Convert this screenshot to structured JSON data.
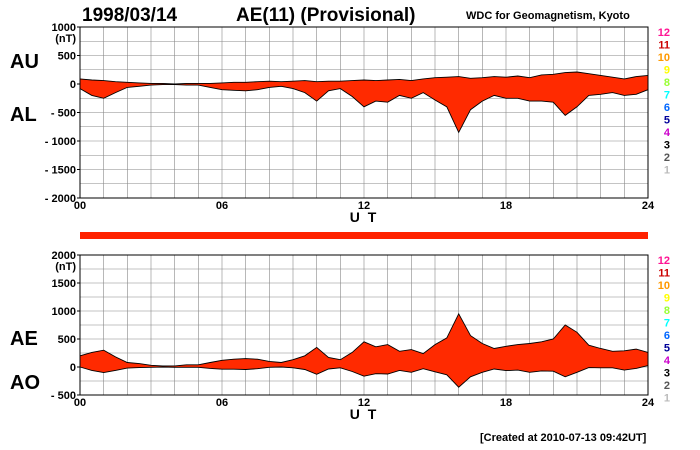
{
  "header": {
    "date": "1998/03/14",
    "title": "AE(11) (Provisional)",
    "source": "WDC for Geomagnetism, Kyoto"
  },
  "footer": {
    "created": "[Created at 2010-07-13 09:42UT]"
  },
  "upper_panel": {
    "label_top": "AU",
    "label_bottom": "AL"
  },
  "lower_panel": {
    "label_top": "AE",
    "label_bottom": "AO"
  },
  "station_count_legend": {
    "labels": [
      "12",
      "11",
      "10",
      "9",
      "8",
      "7",
      "6",
      "5",
      "4",
      "3",
      "2",
      "1"
    ],
    "colors": [
      "#ff1493",
      "#cc0000",
      "#ff9900",
      "#ffff00",
      "#99ff33",
      "#00ffff",
      "#0066ff",
      "#000099",
      "#cc00cc",
      "#000000",
      "#555555",
      "#bbbbbb"
    ]
  },
  "colors": {
    "fill": "#ff2a00",
    "bar": "#ff2200",
    "grid": "#888888",
    "axis": "#000000"
  },
  "chart_data": [
    {
      "type": "area",
      "name": "AU/AL",
      "title": "AE(11) (Provisional)",
      "xlabel": "U T",
      "ylabel": "(nT)",
      "xlim": [
        0,
        24
      ],
      "ylim": [
        -2000,
        1000
      ],
      "xticks": [
        "00",
        "06",
        "12",
        "18",
        "24"
      ],
      "yticks": [
        "1000",
        "500",
        "0",
        "- 500",
        "- 1000",
        "- 1500",
        "- 2000"
      ],
      "x": [
        0,
        0.5,
        1,
        1.5,
        2,
        2.5,
        3,
        3.5,
        4,
        4.5,
        5,
        5.5,
        6,
        6.5,
        7,
        7.5,
        8,
        8.5,
        9,
        9.5,
        10,
        10.5,
        11,
        11.5,
        12,
        12.5,
        13,
        13.5,
        14,
        14.5,
        15,
        15.5,
        16,
        16.5,
        17,
        17.5,
        18,
        18.5,
        19,
        19.5,
        20,
        20.5,
        21,
        21.5,
        22,
        22.5,
        23,
        23.5,
        24
      ],
      "series": [
        {
          "name": "AU",
          "values": [
            90,
            70,
            60,
            40,
            30,
            20,
            10,
            10,
            0,
            10,
            10,
            10,
            20,
            30,
            30,
            40,
            50,
            40,
            50,
            60,
            40,
            50,
            50,
            60,
            70,
            60,
            70,
            80,
            60,
            90,
            110,
            120,
            130,
            100,
            110,
            130,
            120,
            140,
            110,
            160,
            170,
            200,
            210,
            180,
            150,
            120,
            90,
            130,
            150
          ]
        },
        {
          "name": "AL",
          "values": [
            -80,
            -200,
            -250,
            -150,
            -60,
            -40,
            -20,
            -10,
            -10,
            -20,
            -20,
            -60,
            -100,
            -110,
            -120,
            -100,
            -60,
            -40,
            -80,
            -150,
            -300,
            -120,
            -80,
            -220,
            -400,
            -300,
            -320,
            -200,
            -250,
            -150,
            -280,
            -400,
            -850,
            -450,
            -300,
            -200,
            -250,
            -250,
            -300,
            -300,
            -320,
            -550,
            -400,
            -200,
            -180,
            -150,
            -200,
            -180,
            -100
          ]
        }
      ]
    },
    {
      "type": "area",
      "name": "AE/AO",
      "xlabel": "U T",
      "ylabel": "(nT)",
      "xlim": [
        0,
        24
      ],
      "ylim": [
        -500,
        2000
      ],
      "xticks": [
        "00",
        "06",
        "12",
        "18",
        "24"
      ],
      "yticks": [
        "2000",
        "1500",
        "1000",
        "500",
        "0",
        "- 500"
      ],
      "x": [
        0,
        0.5,
        1,
        1.5,
        2,
        2.5,
        3,
        3.5,
        4,
        4.5,
        5,
        5.5,
        6,
        6.5,
        7,
        7.5,
        8,
        8.5,
        9,
        9.5,
        10,
        10.5,
        11,
        11.5,
        12,
        12.5,
        13,
        13.5,
        14,
        14.5,
        15,
        15.5,
        16,
        16.5,
        17,
        17.5,
        18,
        18.5,
        19,
        19.5,
        20,
        20.5,
        21,
        21.5,
        22,
        22.5,
        23,
        23.5,
        24
      ],
      "series": [
        {
          "name": "AE",
          "values": [
            200,
            260,
            300,
            180,
            80,
            60,
            30,
            20,
            20,
            40,
            40,
            80,
            120,
            140,
            150,
            140,
            100,
            80,
            130,
            200,
            350,
            170,
            130,
            260,
            450,
            360,
            400,
            280,
            310,
            240,
            400,
            520,
            950,
            560,
            420,
            330,
            370,
            400,
            420,
            450,
            500,
            750,
            620,
            390,
            330,
            280,
            290,
            320,
            260
          ]
        },
        {
          "name": "AO",
          "values": [
            0,
            -60,
            -100,
            -60,
            -20,
            -10,
            -5,
            0,
            -5,
            -5,
            -5,
            -25,
            -40,
            -40,
            -45,
            -30,
            -5,
            0,
            -15,
            -45,
            -130,
            -35,
            -15,
            -80,
            -165,
            -120,
            -125,
            -60,
            -95,
            -30,
            -85,
            -140,
            -360,
            -175,
            -95,
            -35,
            -65,
            -55,
            -95,
            -70,
            -75,
            -175,
            -95,
            -10,
            -15,
            -15,
            -55,
            -25,
            25
          ]
        }
      ]
    }
  ]
}
